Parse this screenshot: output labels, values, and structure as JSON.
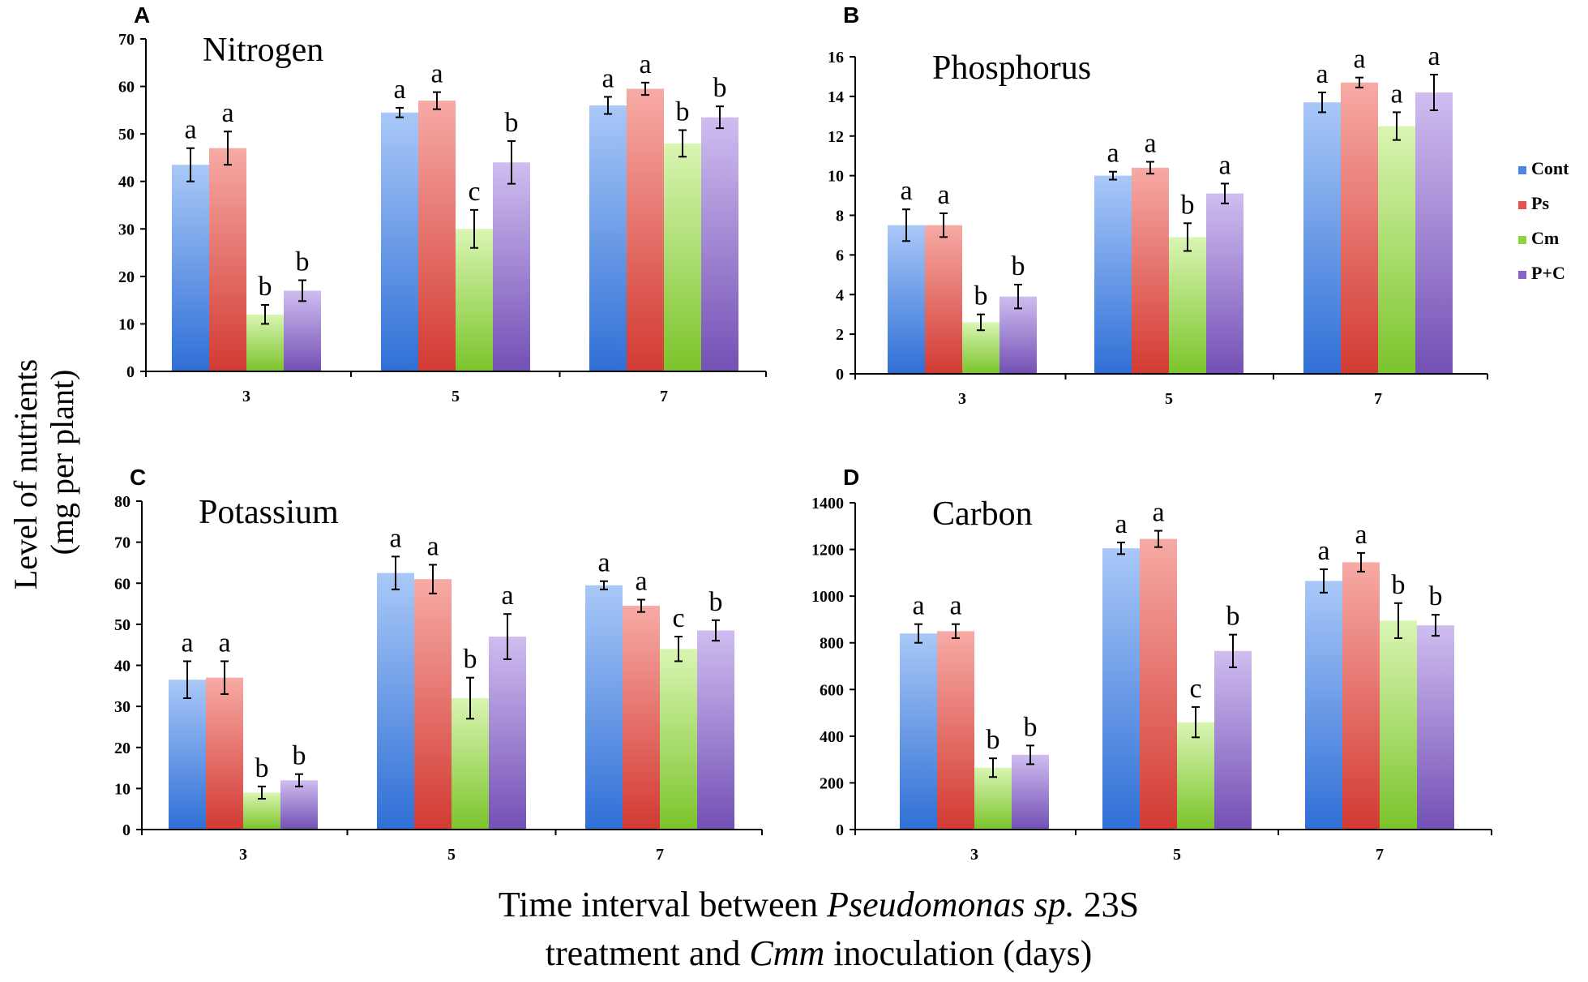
{
  "figure": {
    "ylabel_line1": "Level of nutrients",
    "ylabel_line2": "(mg per plant)",
    "xlabel_part1": "Time interval between ",
    "xlabel_species": "Pseudomonas sp.",
    "xlabel_part2": " 23S",
    "xlabel_line2_part1": "treatment and ",
    "xlabel_line2_italic": "Cmm",
    "xlabel_line2_part2": " inoculation (days)"
  },
  "legend": [
    {
      "name": "Cont",
      "color": "#4a86e8"
    },
    {
      "name": "Ps",
      "color": "#e8524a"
    },
    {
      "name": "Cm",
      "color": "#8ed33c"
    },
    {
      "name": "P+C",
      "color": "#8a63c9"
    }
  ],
  "chart_data": [
    {
      "panel": "A",
      "type": "bar",
      "title": "Nitrogen",
      "categories": [
        "3",
        "5",
        "7"
      ],
      "ylim": [
        0,
        70
      ],
      "yticks": [
        0,
        10,
        20,
        30,
        40,
        50,
        60,
        70
      ],
      "series": [
        {
          "name": "Cont",
          "values": [
            43.5,
            54.5,
            56
          ],
          "errors": [
            3.5,
            1,
            1.8
          ],
          "letters": [
            "a",
            "a",
            "a"
          ]
        },
        {
          "name": "Ps",
          "values": [
            47,
            57,
            59.5
          ],
          "errors": [
            3.5,
            1.8,
            1.3
          ],
          "letters": [
            "a",
            "a",
            "a"
          ]
        },
        {
          "name": "Cm",
          "values": [
            12,
            30,
            48
          ],
          "errors": [
            2,
            4,
            2.8
          ],
          "letters": [
            "b",
            "c",
            "b"
          ]
        },
        {
          "name": "P+C",
          "values": [
            17,
            44,
            53.5
          ],
          "errors": [
            2.2,
            4.5,
            2.3
          ],
          "letters": [
            "b",
            "b",
            "b"
          ]
        }
      ]
    },
    {
      "panel": "B",
      "type": "bar",
      "title": "Phosphorus",
      "categories": [
        "3",
        "5",
        "7"
      ],
      "ylim": [
        0,
        16
      ],
      "yticks": [
        0,
        2,
        4,
        6,
        8,
        10,
        12,
        14,
        16
      ],
      "series": [
        {
          "name": "Cont",
          "values": [
            7.5,
            10,
            13.7
          ],
          "errors": [
            0.8,
            0.2,
            0.5
          ],
          "letters": [
            "a",
            "a",
            "a"
          ]
        },
        {
          "name": "Ps",
          "values": [
            7.5,
            10.4,
            14.7
          ],
          "errors": [
            0.6,
            0.3,
            0.25
          ],
          "letters": [
            "a",
            "a",
            "a"
          ]
        },
        {
          "name": "Cm",
          "values": [
            2.6,
            6.9,
            12.5
          ],
          "errors": [
            0.4,
            0.7,
            0.7
          ],
          "letters": [
            "b",
            "b",
            "a"
          ]
        },
        {
          "name": "P+C",
          "values": [
            3.9,
            9.1,
            14.2
          ],
          "errors": [
            0.6,
            0.5,
            0.9
          ],
          "letters": [
            "b",
            "a",
            "a"
          ]
        }
      ]
    },
    {
      "panel": "C",
      "type": "bar",
      "title": "Potassium",
      "categories": [
        "3",
        "5",
        "7"
      ],
      "ylim": [
        0,
        80
      ],
      "yticks": [
        0,
        10,
        20,
        30,
        40,
        50,
        60,
        70,
        80
      ],
      "series": [
        {
          "name": "Cont",
          "values": [
            36.5,
            62.5,
            59.5
          ],
          "errors": [
            4.5,
            4,
            1
          ],
          "letters": [
            "a",
            "a",
            "a"
          ]
        },
        {
          "name": "Ps",
          "values": [
            37,
            61,
            54.5
          ],
          "errors": [
            4,
            3.5,
            1.5
          ],
          "letters": [
            "a",
            "a",
            "a"
          ]
        },
        {
          "name": "Cm",
          "values": [
            9,
            32,
            44
          ],
          "errors": [
            1.5,
            5,
            3
          ],
          "letters": [
            "b",
            "b",
            "c"
          ]
        },
        {
          "name": "P+C",
          "values": [
            12,
            47,
            48.5
          ],
          "errors": [
            1.5,
            5.5,
            2.5
          ],
          "letters": [
            "b",
            "a",
            "b"
          ]
        }
      ]
    },
    {
      "panel": "D",
      "type": "bar",
      "title": "Carbon",
      "categories": [
        "3",
        "5",
        "7"
      ],
      "ylim": [
        0,
        1400
      ],
      "yticks": [
        0,
        200,
        400,
        600,
        800,
        1000,
        1200,
        1400
      ],
      "series": [
        {
          "name": "Cont",
          "values": [
            840,
            1205,
            1065
          ],
          "errors": [
            40,
            25,
            50
          ],
          "letters": [
            "a",
            "a",
            "a"
          ]
        },
        {
          "name": "Ps",
          "values": [
            850,
            1245,
            1145
          ],
          "errors": [
            30,
            35,
            40
          ],
          "letters": [
            "a",
            "a",
            "a"
          ]
        },
        {
          "name": "Cm",
          "values": [
            265,
            460,
            895
          ],
          "errors": [
            40,
            65,
            75
          ],
          "letters": [
            "b",
            "c",
            "b"
          ]
        },
        {
          "name": "P+C",
          "values": [
            320,
            765,
            875
          ],
          "errors": [
            40,
            70,
            45
          ],
          "letters": [
            "b",
            "b",
            "b"
          ]
        }
      ]
    }
  ]
}
